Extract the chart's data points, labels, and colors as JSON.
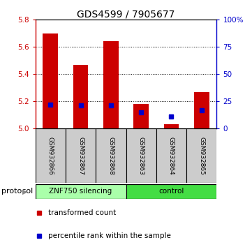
{
  "title": "GDS4599 / 7905677",
  "samples": [
    "GSM932866",
    "GSM932867",
    "GSM932868",
    "GSM932863",
    "GSM932864",
    "GSM932865"
  ],
  "red_values": [
    5.7,
    5.47,
    5.64,
    5.18,
    5.03,
    5.27
  ],
  "blue_values_pct": [
    22,
    21,
    21,
    15,
    11,
    17
  ],
  "ylim_left": [
    5.0,
    5.8
  ],
  "ylim_right": [
    0,
    100
  ],
  "yticks_left": [
    5.0,
    5.2,
    5.4,
    5.6,
    5.8
  ],
  "yticks_right": [
    0,
    25,
    50,
    75,
    100
  ],
  "ytick_labels_right": [
    "0",
    "25",
    "50",
    "75",
    "100%"
  ],
  "bar_color": "#CC0000",
  "marker_color": "#0000CC",
  "bg_color": "#ffffff",
  "sample_bg": "#cccccc",
  "group1_color": "#aaffaa",
  "group2_color": "#44dd44",
  "base_value": 5.0,
  "bar_width": 0.5,
  "legend_red": "transformed count",
  "legend_blue": "percentile rank within the sample",
  "proto_label": "protocol",
  "group1_label": "ZNF750 silencing",
  "group2_label": "control"
}
